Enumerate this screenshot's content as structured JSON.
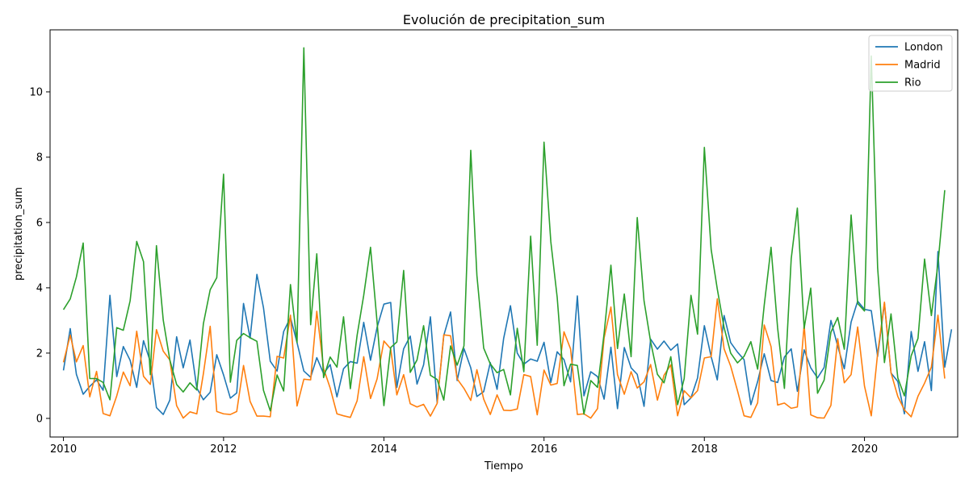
{
  "chart_data": {
    "type": "line",
    "title": "Evolución de precipitation_sum",
    "xlabel": "Tiempo",
    "ylabel": "precipitation_sum",
    "x_ticks": [
      "2010",
      "2012",
      "2014",
      "2016",
      "2018",
      "2020"
    ],
    "y_ticks": [
      "0",
      "2",
      "4",
      "6",
      "8",
      "10"
    ],
    "xlim": [
      "2009-11-01",
      "2021-03-01"
    ],
    "ylim": [
      -0.57,
      11.9
    ],
    "x_start": "2010-01",
    "x_end": "2021-01",
    "x_frequency": "monthly",
    "legend": "top-right",
    "grid": false,
    "series": [
      {
        "name": "London",
        "color": "#1f77b4",
        "values": [
          1.47,
          2.75,
          1.35,
          0.74,
          0.98,
          1.18,
          0.86,
          3.77,
          1.28,
          2.2,
          1.78,
          0.95,
          2.38,
          1.74,
          0.33,
          0.12,
          0.56,
          2.5,
          1.55,
          2.4,
          0.93,
          0.57,
          0.8,
          1.95,
          1.33,
          0.62,
          0.78,
          3.52,
          2.46,
          4.41,
          3.39,
          1.75,
          1.45,
          2.66,
          3.09,
          2.32,
          1.45,
          1.26,
          1.86,
          1.37,
          1.65,
          0.66,
          1.52,
          1.74,
          1.69,
          2.94,
          1.78,
          2.79,
          3.5,
          3.55,
          0.95,
          2.13,
          2.52,
          1.05,
          1.64,
          3.11,
          0.48,
          2.54,
          3.26,
          1.16,
          2.14,
          1.55,
          0.67,
          0.82,
          1.71,
          0.89,
          2.45,
          3.45,
          2.0,
          1.66,
          1.82,
          1.75,
          2.33,
          1.1,
          2.04,
          1.8,
          1.12,
          3.75,
          0.69,
          1.43,
          1.28,
          0.59,
          2.18,
          0.3,
          2.17,
          1.55,
          1.35,
          0.37,
          2.43,
          2.12,
          2.37,
          2.09,
          2.28,
          0.42,
          0.63,
          1.24,
          2.84,
          1.89,
          1.18,
          3.15,
          2.32,
          2.03,
          1.8,
          0.42,
          1.13,
          1.98,
          1.16,
          1.1,
          1.88,
          2.13,
          0.83,
          2.1,
          1.55,
          1.24,
          1.56,
          3.0,
          2.21,
          1.52,
          2.95,
          3.59,
          3.34,
          3.3,
          1.9,
          3.53,
          1.39,
          1.13,
          0.14,
          2.66,
          1.44,
          2.35,
          0.85,
          5.11,
          1.57,
          2.73
        ]
      },
      {
        "name": "Madrid",
        "color": "#ff7f0e",
        "values": [
          1.72,
          2.55,
          1.73,
          2.23,
          0.66,
          1.44,
          0.15,
          0.08,
          0.69,
          1.42,
          1.0,
          2.67,
          1.29,
          1.04,
          2.72,
          2.06,
          1.79,
          0.39,
          0.01,
          0.2,
          0.14,
          1.37,
          2.82,
          0.21,
          0.14,
          0.12,
          0.21,
          1.62,
          0.52,
          0.07,
          0.07,
          0.05,
          1.9,
          1.85,
          3.16,
          0.38,
          1.2,
          1.18,
          3.28,
          1.53,
          0.93,
          0.14,
          0.08,
          0.03,
          0.54,
          1.89,
          0.61,
          1.21,
          2.37,
          2.13,
          0.72,
          1.34,
          0.45,
          0.35,
          0.43,
          0.07,
          0.46,
          2.56,
          2.53,
          1.21,
          0.92,
          0.55,
          1.49,
          0.59,
          0.12,
          0.72,
          0.25,
          0.24,
          0.29,
          1.34,
          1.28,
          0.11,
          1.48,
          1.02,
          1.07,
          2.65,
          2.13,
          0.12,
          0.14,
          0.01,
          0.3,
          2.47,
          3.41,
          1.34,
          0.74,
          1.43,
          0.93,
          1.12,
          1.65,
          0.56,
          1.32,
          1.64,
          0.08,
          0.85,
          0.63,
          0.85,
          1.85,
          1.89,
          3.66,
          2.13,
          1.6,
          0.85,
          0.08,
          0.03,
          0.48,
          2.86,
          2.2,
          0.41,
          0.47,
          0.31,
          0.35,
          2.86,
          0.11,
          0.02,
          0.01,
          0.4,
          2.44,
          1.09,
          1.34,
          2.8,
          0.99,
          0.08,
          1.99,
          3.56,
          1.4,
          0.67,
          0.26,
          0.05,
          0.68,
          1.08,
          1.57,
          3.16,
          1.22
        ]
      },
      {
        "name": "Rio",
        "color": "#2ca02c",
        "values": [
          3.33,
          3.66,
          4.33,
          5.37,
          1.22,
          1.22,
          1.1,
          0.57,
          2.78,
          2.7,
          3.6,
          5.42,
          4.8,
          1.34,
          5.29,
          3.01,
          1.79,
          1.04,
          0.81,
          1.09,
          0.87,
          2.9,
          3.94,
          4.31,
          7.48,
          1.11,
          2.39,
          2.6,
          2.47,
          2.36,
          0.86,
          0.23,
          1.33,
          0.84,
          4.1,
          2.32,
          11.35,
          2.87,
          5.04,
          1.25,
          1.88,
          1.57,
          3.11,
          0.91,
          2.55,
          3.77,
          5.24,
          2.94,
          0.39,
          2.17,
          2.34,
          4.53,
          1.41,
          1.79,
          2.84,
          1.32,
          1.19,
          0.56,
          2.22,
          1.63,
          2.22,
          8.21,
          4.38,
          2.15,
          1.67,
          1.4,
          1.5,
          0.72,
          2.76,
          1.43,
          5.58,
          2.24,
          8.46,
          5.41,
          3.71,
          1.0,
          1.66,
          1.62,
          0.13,
          1.16,
          0.95,
          2.6,
          4.69,
          2.14,
          3.81,
          1.89,
          6.15,
          3.6,
          2.35,
          1.35,
          1.09,
          1.89,
          0.42,
          1.22,
          3.77,
          2.58,
          8.3,
          5.17,
          3.96,
          2.78,
          2.0,
          1.7,
          1.9,
          2.35,
          1.51,
          3.47,
          5.24,
          2.77,
          0.92,
          4.89,
          6.44,
          2.76,
          3.99,
          0.77,
          1.17,
          2.64,
          3.09,
          2.12,
          6.23,
          3.52,
          3.29,
          11.1,
          4.61,
          1.71,
          3.2,
          1.24,
          0.69,
          1.92,
          2.45,
          4.88,
          3.15,
          4.73,
          6.99
        ]
      }
    ]
  }
}
